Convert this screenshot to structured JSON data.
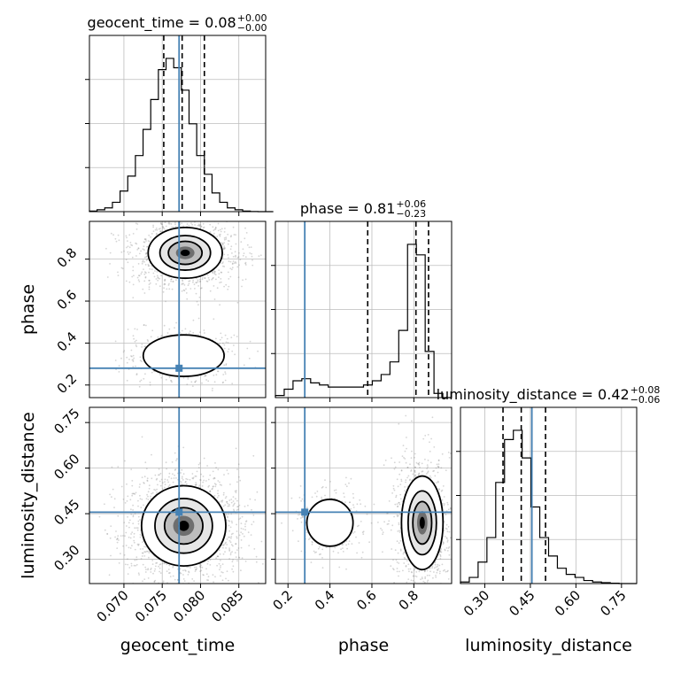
{
  "chart_data": {
    "type": "corner",
    "parameters": [
      "geocent_time",
      "phase",
      "luminosity_distance"
    ],
    "axis_labels": [
      "geocent_time",
      "phase",
      "luminosity_distance"
    ],
    "ranges": [
      [
        0.0655,
        0.0885
      ],
      [
        0.14,
        0.98
      ],
      [
        0.22,
        0.8
      ]
    ],
    "ticks": [
      [
        0.07,
        0.075,
        0.08,
        0.085
      ],
      [
        0.2,
        0.4,
        0.6,
        0.8
      ],
      [
        0.3,
        0.45,
        0.6,
        0.75
      ]
    ],
    "tick_labels": [
      [
        "0.070",
        "0.075",
        "0.080",
        "0.085"
      ],
      [
        "0.2",
        "0.4",
        "0.6",
        "0.8"
      ],
      [
        "0.30",
        "0.45",
        "0.60",
        "0.75"
      ]
    ],
    "truths": [
      0.0772,
      0.28,
      0.455
    ],
    "truth_color": "#4682b4",
    "titles": [
      {
        "name": "geocent_time",
        "median": "0.08",
        "plus": "+0.00",
        "minus": "−0.00"
      },
      {
        "name": "phase",
        "median": "0.81",
        "plus": "+0.06",
        "minus": "−0.23"
      },
      {
        "name": "luminosity_distance",
        "median": "0.42",
        "plus": "+0.08",
        "minus": "−0.06"
      }
    ],
    "quantiles": [
      [
        0.0752,
        0.0776,
        0.0805
      ],
      [
        0.58,
        0.81,
        0.87
      ],
      [
        0.36,
        0.42,
        0.5
      ]
    ],
    "histograms": [
      {
        "param": "geocent_time",
        "bin_start": 0.0655,
        "bin_width": 0.001,
        "counts": [
          0.3,
          1,
          2,
          5,
          11,
          19,
          30,
          44,
          60,
          76,
          82,
          77,
          65,
          47,
          30,
          20,
          10,
          5,
          2,
          1,
          0.3,
          0.1,
          0,
          0
        ]
      },
      {
        "param": "phase",
        "bin_start": 0.14,
        "bin_width": 0.042,
        "counts": [
          1,
          4,
          8,
          9,
          7,
          6,
          5,
          5,
          5,
          5,
          6,
          8,
          11,
          17,
          32,
          73,
          68,
          22,
          2,
          0
        ]
      },
      {
        "param": "luminosity_distance",
        "bin_start": 0.22,
        "bin_width": 0.029,
        "counts": [
          0.5,
          2,
          7,
          15,
          33,
          47,
          50,
          41,
          25,
          15,
          9,
          5,
          3,
          2,
          1,
          0.5,
          0.3,
          0.1,
          0,
          0
        ]
      }
    ],
    "pairs": [
      {
        "x": "geocent_time",
        "y": "phase"
      },
      {
        "x": "geocent_time",
        "y": "luminosity_distance"
      },
      {
        "x": "phase",
        "y": "luminosity_distance"
      }
    ],
    "grid": true
  }
}
